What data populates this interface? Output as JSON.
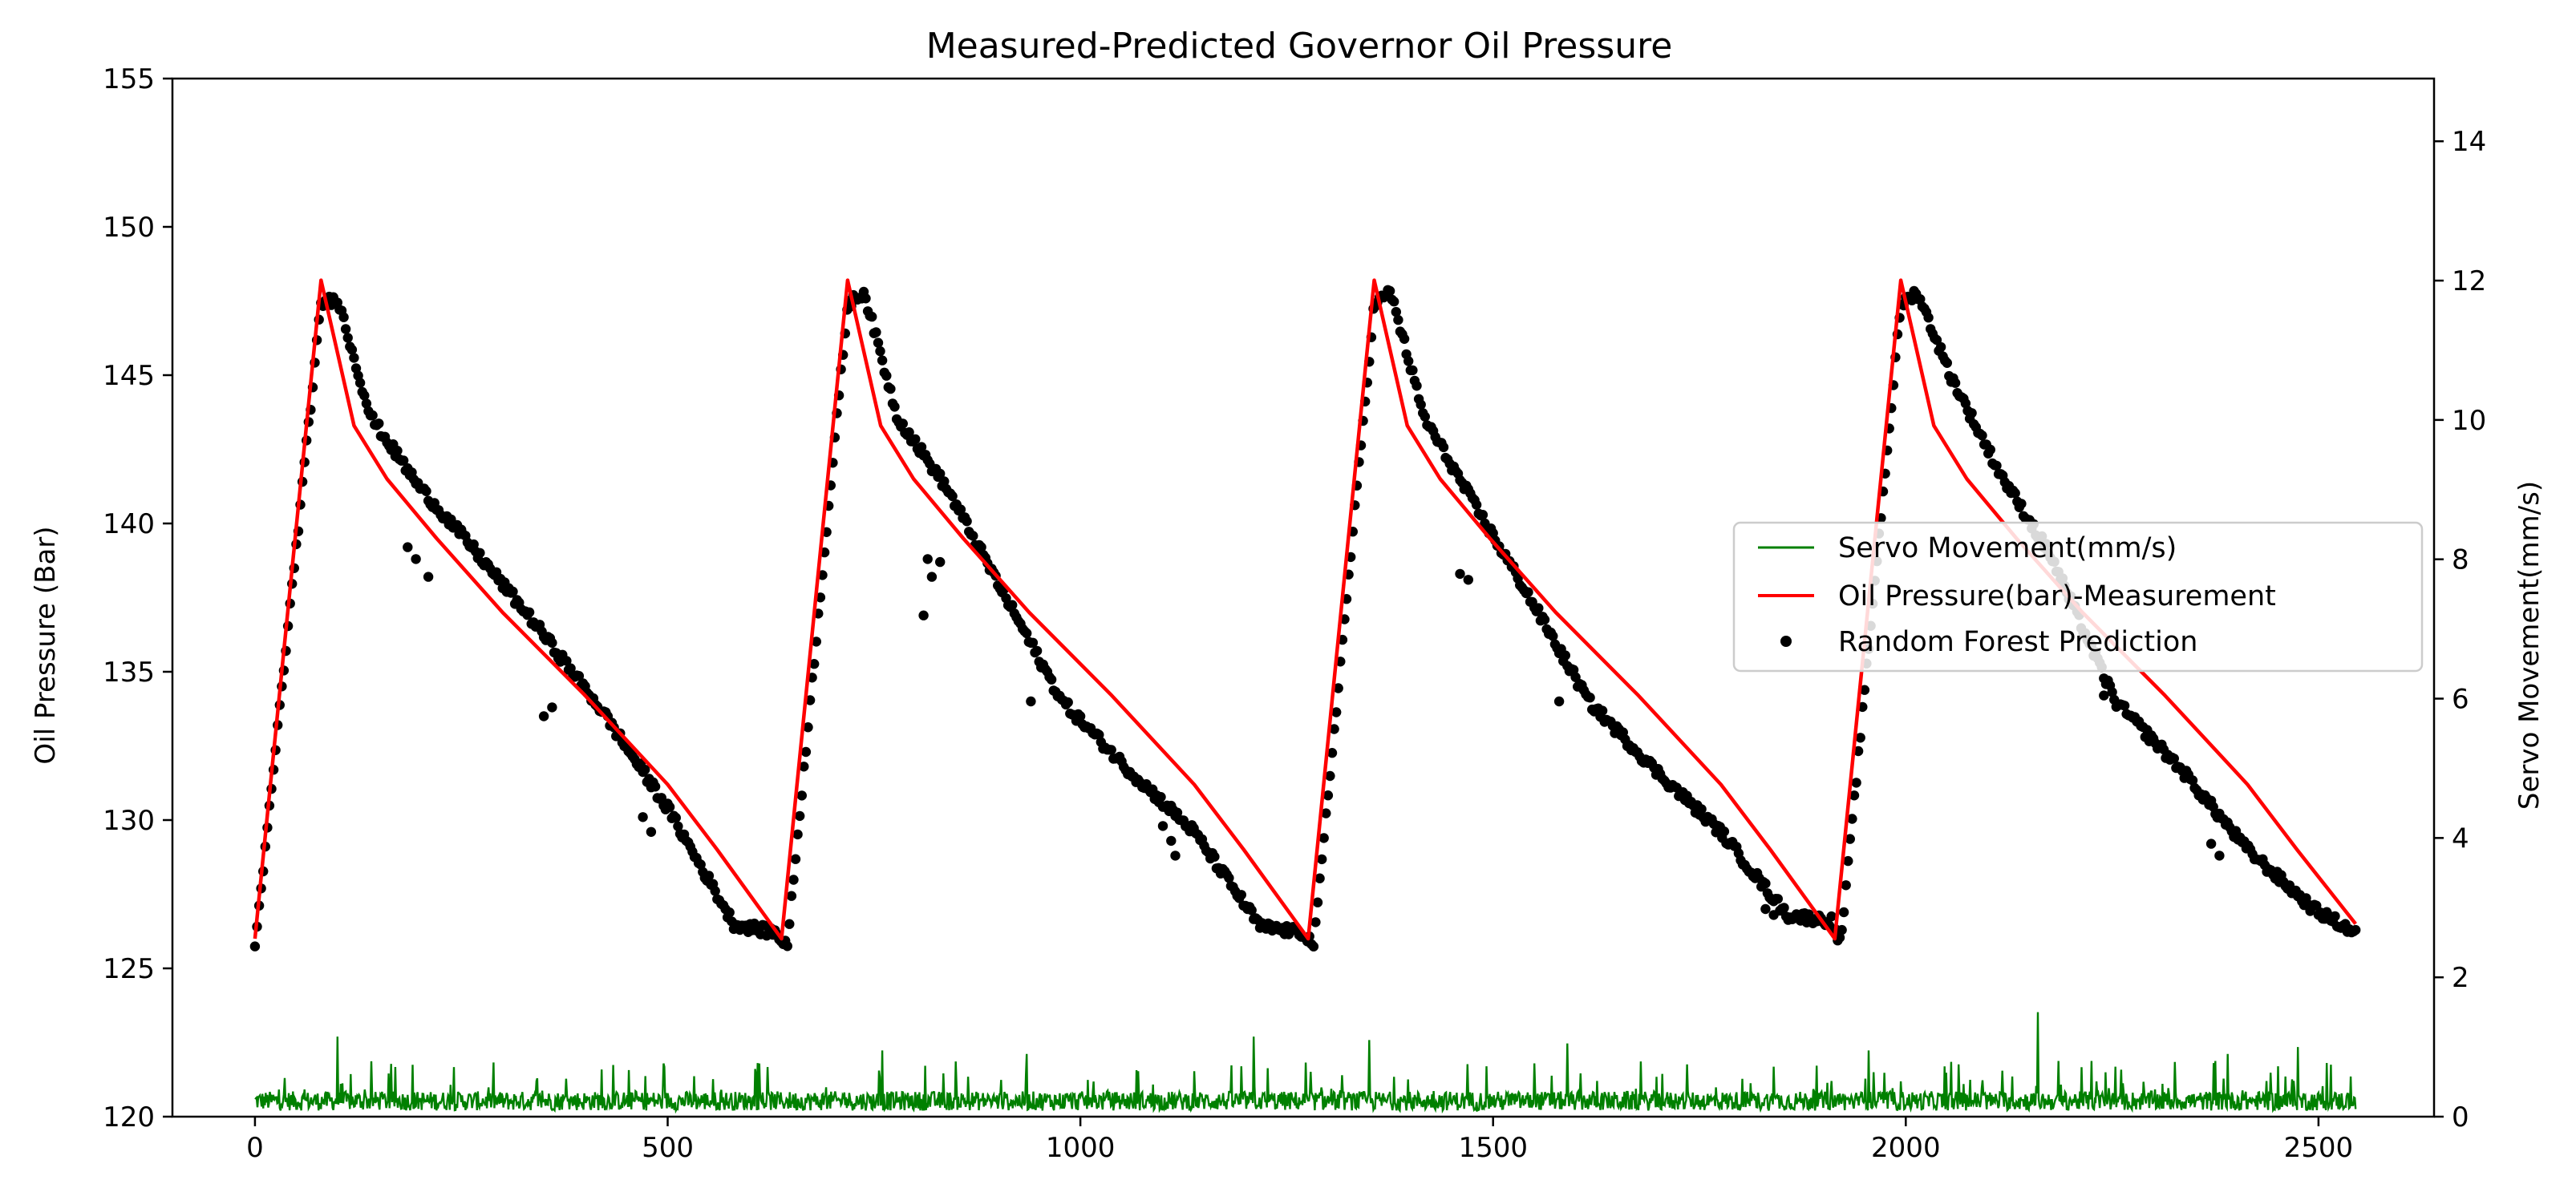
{
  "chart_data": {
    "type": "line",
    "title": "Measured-Predicted Governor Oil Pressure",
    "xlabel": "",
    "ylabel": "Oil Pressure (Bar)",
    "y2label": "Servo Movement(mm/s)",
    "xlim": [
      -100,
      2640
    ],
    "ylim": [
      120,
      155
    ],
    "y2lim": [
      0,
      14.9
    ],
    "x_ticks": [
      0,
      500,
      1000,
      1500,
      2000,
      2500
    ],
    "y_ticks": [
      120,
      125,
      130,
      135,
      140,
      145,
      150,
      155
    ],
    "y2_ticks": [
      0,
      2,
      4,
      6,
      8,
      10,
      12,
      14
    ],
    "grid": false,
    "legend_position": "center-right",
    "cycle_period": 638,
    "peak_offset": 80,
    "series": [
      {
        "name": "Servo Movement(mm/s)",
        "type": "line",
        "axis": "right",
        "color": "#008000",
        "x_range": [
          0,
          2545
        ],
        "baseline": 0.25,
        "typical_max": 0.8,
        "spikes": [
          {
            "x": 100,
            "y": 1.15
          },
          {
            "x": 760,
            "y": 0.95
          },
          {
            "x": 935,
            "y": 0.9
          },
          {
            "x": 1210,
            "y": 1.15
          },
          {
            "x": 1350,
            "y": 1.1
          },
          {
            "x": 1590,
            "y": 1.05
          },
          {
            "x": 1955,
            "y": 0.95
          },
          {
            "x": 2160,
            "y": 1.5
          },
          {
            "x": 2185,
            "y": 0.8
          },
          {
            "x": 2225,
            "y": 0.8
          },
          {
            "x": 2390,
            "y": 0.9
          },
          {
            "x": 2475,
            "y": 1.0
          }
        ]
      },
      {
        "name": "Oil Pressure(bar)-Measurement",
        "type": "line",
        "axis": "left",
        "color": "#ff0000",
        "x": [
          0,
          80,
          120,
          160,
          220,
          300,
          400,
          500,
          560,
          638,
          718,
          758,
          798,
          858,
          938,
          1038,
          1138,
          1198,
          1276,
          1356,
          1396,
          1436,
          1496,
          1576,
          1676,
          1776,
          1836,
          1914,
          1994,
          2034,
          2074,
          2134,
          2214,
          2314,
          2414,
          2474,
          2545
        ],
        "values": [
          126.0,
          148.2,
          143.3,
          141.5,
          139.5,
          137.0,
          134.2,
          131.2,
          129.0,
          126.0,
          148.2,
          143.3,
          141.5,
          139.5,
          137.0,
          134.2,
          131.2,
          129.0,
          126.0,
          148.2,
          143.3,
          141.5,
          139.5,
          137.0,
          134.2,
          131.2,
          129.0,
          126.0,
          148.2,
          143.3,
          141.5,
          139.5,
          137.0,
          134.2,
          131.2,
          129.0,
          126.5
        ]
      },
      {
        "name": "Random Forest Prediction",
        "type": "scatter",
        "axis": "left",
        "color": "#000000",
        "x": [
          0,
          80,
          100,
          140,
          200,
          260,
          340,
          420,
          500,
          580,
          630,
          645,
          718,
          738,
          778,
          838,
          898,
          978,
          1058,
          1138,
          1218,
          1270,
          1283,
          1356,
          1376,
          1416,
          1476,
          1536,
          1616,
          1696,
          1776,
          1856,
          1910,
          1921,
          1994,
          2014,
          2054,
          2114,
          2174,
          2254,
          2334,
          2414,
          2494,
          2545
        ],
        "values": [
          125.6,
          147.4,
          147.6,
          143.6,
          141.2,
          139.3,
          136.6,
          133.7,
          130.4,
          126.5,
          126.2,
          125.8,
          147.4,
          147.8,
          143.6,
          141.2,
          138.1,
          134.0,
          131.7,
          129.6,
          126.4,
          126.2,
          125.8,
          147.4,
          147.8,
          143.6,
          140.7,
          137.9,
          134.0,
          131.7,
          129.6,
          126.8,
          126.6,
          125.8,
          147.4,
          147.8,
          145.0,
          141.7,
          139.0,
          134.0,
          131.7,
          129.0,
          127.0,
          126.2
        ],
        "outliers": [
          {
            "x": 185,
            "y": 139.2
          },
          {
            "x": 195,
            "y": 138.8
          },
          {
            "x": 210,
            "y": 138.2
          },
          {
            "x": 350,
            "y": 133.5
          },
          {
            "x": 360,
            "y": 133.8
          },
          {
            "x": 470,
            "y": 130.1
          },
          {
            "x": 480,
            "y": 129.6
          },
          {
            "x": 815,
            "y": 138.8
          },
          {
            "x": 820,
            "y": 138.2
          },
          {
            "x": 810,
            "y": 136.9
          },
          {
            "x": 830,
            "y": 138.7
          },
          {
            "x": 940,
            "y": 134.0
          },
          {
            "x": 1100,
            "y": 129.8
          },
          {
            "x": 1110,
            "y": 129.3
          },
          {
            "x": 1115,
            "y": 128.8
          },
          {
            "x": 1460,
            "y": 138.3
          },
          {
            "x": 1470,
            "y": 138.1
          },
          {
            "x": 1580,
            "y": 134.0
          },
          {
            "x": 1830,
            "y": 127.0
          },
          {
            "x": 1840,
            "y": 126.8
          },
          {
            "x": 2240,
            "y": 134.2
          },
          {
            "x": 2370,
            "y": 129.2
          },
          {
            "x": 2380,
            "y": 128.8
          }
        ]
      }
    ]
  }
}
